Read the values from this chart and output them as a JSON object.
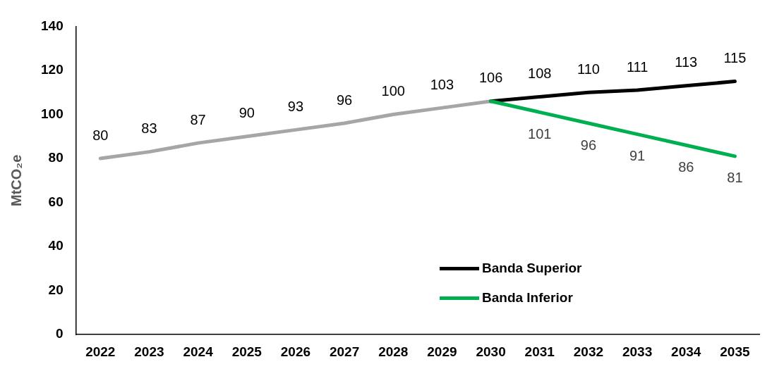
{
  "chart_data": {
    "type": "line",
    "ylabel": "MtCO₂e",
    "categories": [
      "2022",
      "2023",
      "2024",
      "2025",
      "2026",
      "2027",
      "2028",
      "2029",
      "2030",
      "2031",
      "2032",
      "2033",
      "2034",
      "2035"
    ],
    "series": [
      {
        "color": "#a6a6a6",
        "values": [
          80,
          83,
          87,
          90,
          93,
          96,
          100,
          103,
          106,
          null,
          null,
          null,
          null,
          null
        ],
        "value_labels": [
          "80",
          "83",
          "87",
          "90",
          "93",
          "96",
          "100",
          "103",
          "106",
          null,
          null,
          null,
          null,
          null
        ]
      },
      {
        "name": "Banda Superior",
        "color": "#000000",
        "values": [
          null,
          null,
          null,
          null,
          null,
          null,
          null,
          null,
          106,
          108,
          110,
          111,
          113,
          115
        ],
        "value_labels": [
          null,
          null,
          null,
          null,
          null,
          null,
          null,
          null,
          null,
          "108",
          "110",
          "111",
          "113",
          "115"
        ]
      },
      {
        "name": "Banda Inferior",
        "color": "#00b050",
        "values": [
          null,
          null,
          null,
          null,
          null,
          null,
          null,
          null,
          106,
          101,
          96,
          91,
          86,
          81
        ],
        "value_labels": [
          null,
          null,
          null,
          null,
          null,
          null,
          null,
          null,
          null,
          "101",
          "96",
          "91",
          "86",
          "81"
        ]
      }
    ],
    "ylim": [
      0,
      140
    ],
    "yticks": [
      0,
      20,
      40,
      60,
      80,
      100,
      120,
      140
    ],
    "grid": false,
    "legend": "right",
    "marker": "none",
    "line_style": "solid"
  }
}
